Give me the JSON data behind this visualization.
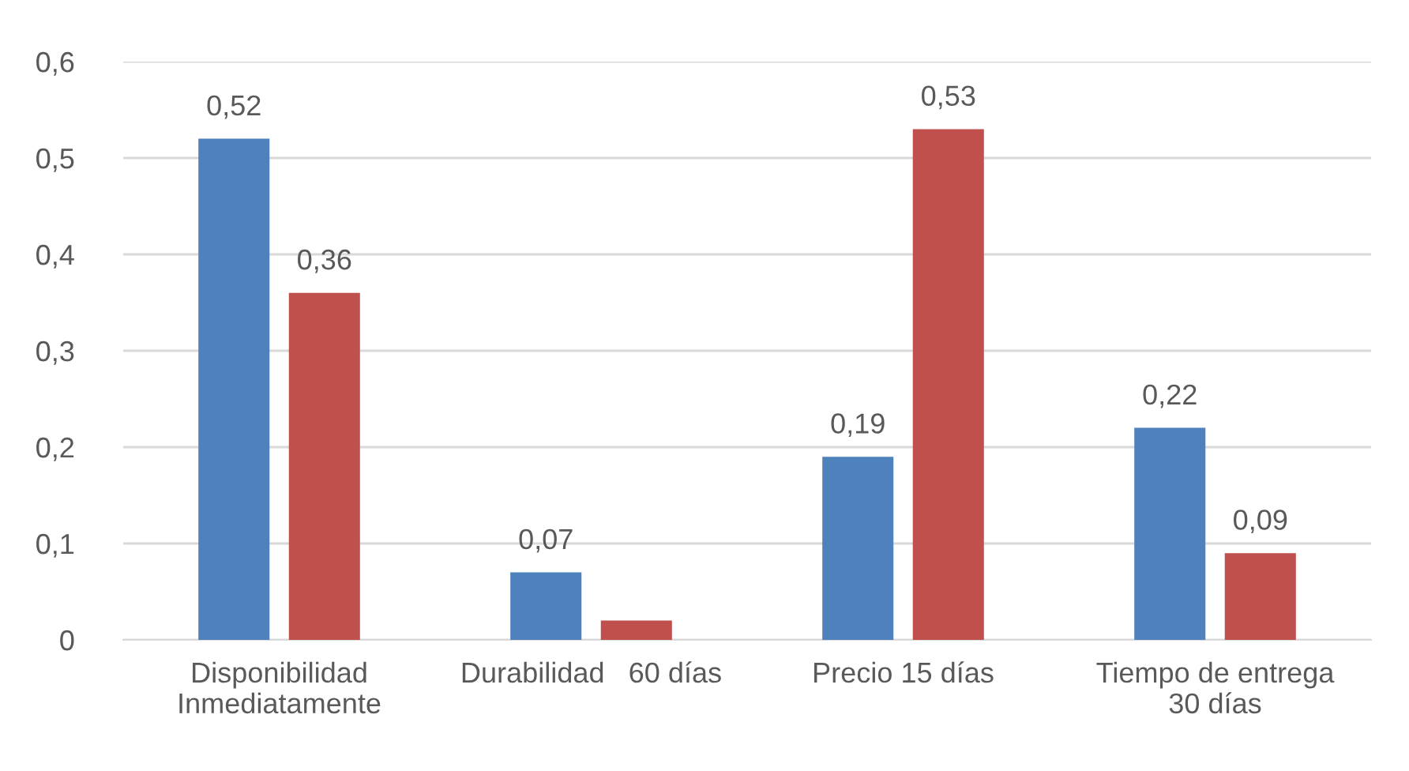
{
  "chart_data": {
    "type": "bar",
    "categories": [
      "Disponibilidad\nInmediatamente",
      "Durabilidad   60 días",
      "Precio 15 días",
      "Tiempo de entrega\n30 días"
    ],
    "series": [
      {
        "color": "#4f81bd",
        "values": [
          0.52,
          0.07,
          0.19,
          0.22
        ],
        "value_labels": [
          "0,52",
          "0,07",
          "0,19",
          "0,22"
        ]
      },
      {
        "color": "#c0504d",
        "values": [
          0.36,
          0.02,
          0.53,
          0.09
        ],
        "value_labels": [
          "0,36",
          null,
          "0,53",
          "0,09"
        ]
      }
    ],
    "ylim": [
      0,
      0.6
    ],
    "yticks": [
      0,
      {
        "value": 0.1,
        "label": "0,1"
      },
      {
        "value": 0.2,
        "label": "0,2"
      },
      {
        "value": 0.3,
        "label": "0,3"
      },
      {
        "value": 0.4,
        "label": "0,4"
      },
      {
        "value": 0.5,
        "label": "0,5"
      },
      {
        "value": 0.6,
        "label": "0,6"
      }
    ],
    "grid": "y",
    "legend": false
  }
}
